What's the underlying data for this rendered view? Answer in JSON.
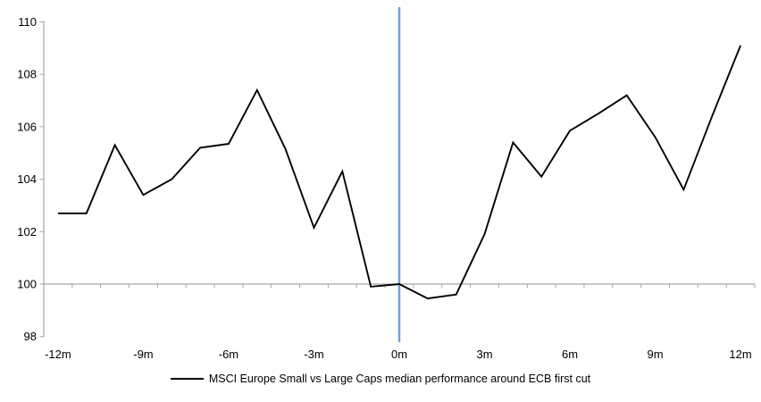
{
  "chart_data": {
    "type": "line",
    "x": [
      -12,
      -11,
      -10,
      -9,
      -8,
      -7,
      -6,
      -5,
      -4,
      -3,
      -2,
      -1,
      0,
      1,
      2,
      3,
      4,
      5,
      6,
      7,
      8,
      9,
      10,
      11,
      12
    ],
    "series": [
      {
        "name": "MSCI Europe Small vs Large Caps median performance around ECB first cut",
        "color": "#000000",
        "values": [
          102.7,
          102.7,
          105.3,
          103.4,
          104.0,
          105.2,
          105.35,
          107.4,
          105.15,
          102.15,
          104.3,
          99.9,
          100.0,
          99.45,
          99.6,
          101.9,
          105.4,
          104.1,
          105.85,
          106.5,
          107.2,
          105.6,
          103.6,
          106.4,
          109.1
        ]
      }
    ],
    "title": "",
    "xlabel": "",
    "ylabel": "",
    "ylim": [
      98,
      110
    ],
    "y_ticks": [
      98,
      100,
      102,
      104,
      106,
      108,
      110
    ],
    "x_tick_values": [
      -12,
      -9,
      -6,
      -3,
      0,
      3,
      6,
      9,
      12
    ],
    "x_tick_labels": [
      "-12m",
      "-9m",
      "-6m",
      "-3m",
      "0m",
      "3m",
      "6m",
      "9m",
      "12m"
    ],
    "baseline_value": 100,
    "event_line_x": 0,
    "grid": "off",
    "legend_position": "bottom-center",
    "legend": {
      "label": "MSCI Europe Small vs Large Caps median performance around ECB first cut"
    },
    "colors": {
      "series_line": "#000000",
      "event_line": "#74A3D4",
      "axis": "#A6A6A6",
      "text": "#000000",
      "background": "#FFFFFF"
    }
  }
}
